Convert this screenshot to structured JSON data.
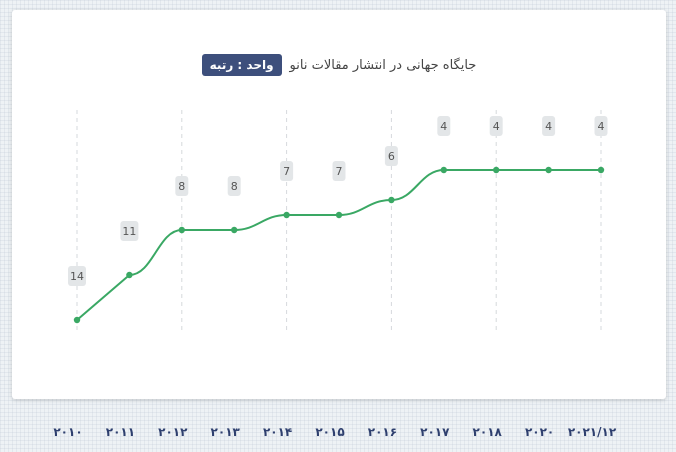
{
  "header": {
    "unit_badge": "واحد : رتبه",
    "title": "جایگاه جهانی در انتشار مقالات نانو"
  },
  "colors": {
    "line": "#3aa864",
    "badge": "#3d4f7c",
    "year_labels": "#2e3f6e"
  },
  "chart_data": {
    "type": "line",
    "title": "جایگاه جهانی در انتشار مقالات نانو",
    "unit": "واحد : رتبه",
    "categories": [
      "۲۰۱۰",
      "۲۰۱۱",
      "۲۰۱۲",
      "۲۰۱۳",
      "۲۰۱۴",
      "۲۰۱۵",
      "۲۰۱۶",
      "۲۰۱۷",
      "۲۰۱۸",
      "۲۰۲۰",
      "۲۰۲۱/۱۲"
    ],
    "values": [
      14,
      11,
      8,
      8,
      7,
      7,
      6,
      4,
      4,
      4,
      4
    ],
    "ylim": [
      16,
      3
    ],
    "grid": "vertical dashed on every other category",
    "legend": "none"
  }
}
